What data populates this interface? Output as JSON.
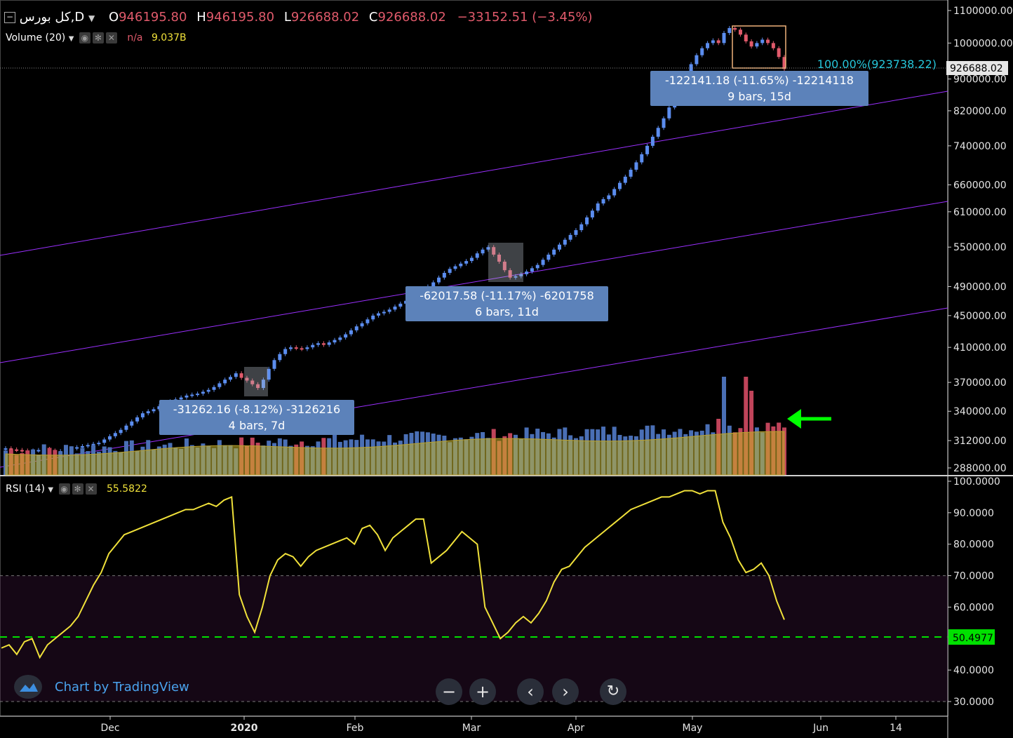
{
  "header": {
    "symbol": "كل بورس,D",
    "open_label": "O",
    "open": "946195.80",
    "high_label": "H",
    "high": "946195.80",
    "low_label": "L",
    "low": "926688.02",
    "close_label": "C",
    "close": "926688.02",
    "change": "−33152.51 (−3.45%)",
    "volume_label": "Volume (20)",
    "volume_na": "n/a",
    "volume_value": "9.037B",
    "rsi_label": "RSI (14)",
    "rsi_value": "55.5822"
  },
  "watermark": "Chart by TradingView",
  "colors": {
    "up": "#5b8def",
    "down": "#e05a6b",
    "channel": "#9b30ff",
    "rsi": "#f0e13a",
    "rsi_level": "#00e000",
    "fib": "#26c6da",
    "arrow": "#00ff00"
  },
  "chart_data": [
    {
      "type": "candlestick",
      "scale": "log",
      "x_axis_ticks": [
        "Dec",
        "2020",
        "Feb",
        "Mar",
        "Apr",
        "May",
        "Jun",
        "14"
      ],
      "y_axis_ticks": [
        1100000,
        1000000,
        900000,
        820000,
        740000,
        660000,
        610000,
        550000,
        490000,
        450000,
        410000,
        370000,
        340000,
        312000,
        288000
      ],
      "y_axis_labels": [
        "1100000.00",
        "1000000.00",
        "900000.00",
        "820000.00",
        "740000.00",
        "660000.00",
        "610000.00",
        "550000.00",
        "490000.00",
        "450000.00",
        "410000.00",
        "370000.00",
        "340000.00",
        "312000.00",
        "288000.00"
      ],
      "ylim": [
        270000,
        1130000
      ],
      "last_price_label": "926688.02",
      "fib_label": "100.00%(923738.22)",
      "close_series": [
        305000,
        304000,
        303500,
        303000,
        302500,
        303000,
        303500,
        304500,
        303000,
        302000,
        302500,
        303500,
        305000,
        306000,
        307000,
        308000,
        309000,
        310000,
        313000,
        316000,
        319000,
        322000,
        326000,
        330000,
        334000,
        338000,
        340000,
        342000,
        345000,
        348000,
        350000,
        352000,
        354000,
        356000,
        357000,
        358000,
        360000,
        362000,
        365000,
        369000,
        373000,
        376000,
        380000,
        375000,
        372000,
        368000,
        364000,
        373000,
        385000,
        395000,
        402000,
        408000,
        410000,
        409000,
        408000,
        410000,
        413000,
        415000,
        413000,
        416000,
        419000,
        422000,
        426000,
        431000,
        436000,
        440000,
        445000,
        450000,
        453000,
        455000,
        458000,
        462000,
        466000,
        470000,
        474000,
        478000,
        484000,
        490000,
        496000,
        503000,
        510000,
        516000,
        520000,
        524000,
        528000,
        533000,
        540000,
        546000,
        550000,
        538000,
        527000,
        514000,
        503000,
        505000,
        508000,
        512000,
        517000,
        522000,
        530000,
        538000,
        546000,
        554000,
        562000,
        570000,
        578000,
        588000,
        600000,
        612000,
        625000,
        633000,
        640000,
        652000,
        664000,
        676000,
        690000,
        705000,
        722000,
        740000,
        760000,
        780000,
        802000,
        828000,
        852000,
        880000,
        910000,
        940000,
        965000,
        985000,
        1000000,
        1008000,
        1000000,
        1030000,
        1045000,
        1040000,
        1025000,
        1005000,
        990000,
        1000000,
        1010000,
        1000000,
        985000,
        960000,
        926688
      ],
      "volume_value": "9.037B",
      "measurements": [
        {
          "line1": "-31262.16 (-8.12%) -3126216",
          "line2": "4 bars, 7d"
        },
        {
          "line1": "-62017.58 (-11.17%) -6201758",
          "line2": "6 bars, 11d"
        },
        {
          "line1": "-122141.18 (-11.65%) -12214118",
          "line2": "9 bars, 15d"
        }
      ]
    },
    {
      "type": "line",
      "series_name": "RSI (14)",
      "ylim": [
        25,
        100
      ],
      "y_axis_ticks": [
        100,
        90,
        80,
        70,
        60,
        40,
        30
      ],
      "y_axis_labels": [
        "100.0000",
        "90.0000",
        "80.0000",
        "70.0000",
        "60.0000",
        "40.0000",
        "30.0000"
      ],
      "level_lines": [
        70,
        30
      ],
      "level_label": "50.4977",
      "level_value": 50.4977,
      "values": [
        47,
        48,
        45,
        49,
        50,
        44,
        48,
        50,
        52,
        54,
        57,
        62,
        67,
        71,
        77,
        80,
        83,
        84,
        85,
        86,
        87,
        88,
        89,
        90,
        91,
        91,
        92,
        93,
        92,
        94,
        95,
        64,
        57,
        52,
        60,
        70,
        75,
        77,
        76,
        73,
        76,
        78,
        79,
        80,
        81,
        82,
        80,
        85,
        86,
        83,
        78,
        82,
        84,
        86,
        88,
        88,
        74,
        76,
        78,
        81,
        84,
        82,
        80,
        60,
        55,
        50,
        52,
        55,
        57,
        55,
        58,
        62,
        68,
        72,
        73,
        76,
        79,
        81,
        83,
        85,
        87,
        89,
        91,
        92,
        93,
        94,
        95,
        95,
        96,
        97,
        97,
        96,
        97,
        97,
        87,
        82,
        75,
        71,
        72,
        74,
        70,
        62,
        56
      ]
    }
  ]
}
